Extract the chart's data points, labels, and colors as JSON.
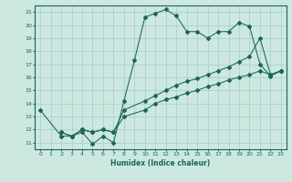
{
  "bg_color": "#cce8e0",
  "grid_color": "#a8ccc8",
  "line_color": "#1a6655",
  "xlabel": "Humidex (Indice chaleur)",
  "xlim": [
    -0.5,
    23.5
  ],
  "ylim": [
    10.5,
    21.5
  ],
  "xticks": [
    0,
    1,
    2,
    3,
    4,
    5,
    6,
    7,
    8,
    9,
    10,
    11,
    12,
    13,
    14,
    15,
    16,
    17,
    18,
    19,
    20,
    21,
    22,
    23
  ],
  "yticks": [
    11,
    12,
    13,
    14,
    15,
    16,
    17,
    18,
    19,
    20,
    21
  ],
  "line1_x": [
    0,
    2,
    3,
    4,
    5,
    6,
    7,
    8,
    9,
    10,
    11,
    12,
    13,
    14,
    15,
    16,
    17,
    18,
    19,
    20,
    21,
    22,
    23
  ],
  "line1_y": [
    13.5,
    11.5,
    11.5,
    11.8,
    10.9,
    11.5,
    11.0,
    14.2,
    17.3,
    20.6,
    20.9,
    21.2,
    20.7,
    19.5,
    19.5,
    19.0,
    19.5,
    19.5,
    20.2,
    19.9,
    17.0,
    16.1,
    16.5
  ],
  "line2_x": [
    2,
    3,
    4,
    5,
    6,
    7,
    8,
    10,
    11,
    12,
    13,
    14,
    15,
    16,
    17,
    18,
    19,
    20,
    21,
    22,
    23
  ],
  "line2_y": [
    11.8,
    11.5,
    12.0,
    11.8,
    12.0,
    11.8,
    13.5,
    14.2,
    14.6,
    15.0,
    15.4,
    15.7,
    15.9,
    16.2,
    16.5,
    16.8,
    17.2,
    17.6,
    19.0,
    16.2,
    16.5
  ],
  "line3_x": [
    2,
    3,
    4,
    5,
    6,
    7,
    8,
    10,
    11,
    12,
    13,
    14,
    15,
    16,
    17,
    18,
    19,
    20,
    21,
    22,
    23
  ],
  "line3_y": [
    11.8,
    11.5,
    12.0,
    11.8,
    12.0,
    11.8,
    13.0,
    13.5,
    14.0,
    14.3,
    14.5,
    14.8,
    15.0,
    15.3,
    15.5,
    15.8,
    16.0,
    16.2,
    16.5,
    16.2,
    16.5
  ]
}
